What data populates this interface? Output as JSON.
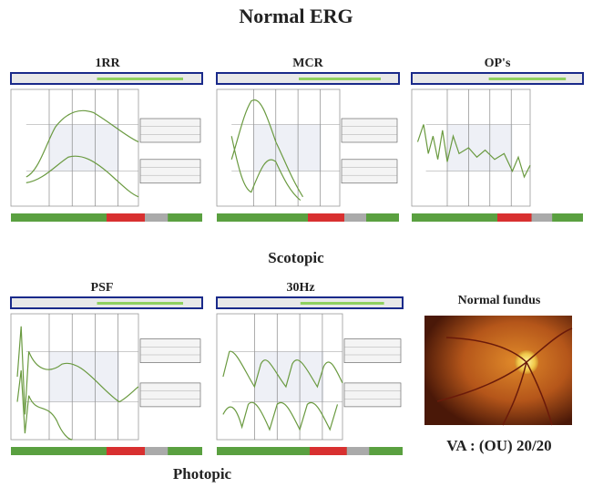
{
  "title": "Normal ERG",
  "scotopic": {
    "panels": [
      "1RR",
      "MCR",
      "OP's"
    ],
    "label": "Scotopic"
  },
  "photopic": {
    "panels": [
      "PSF",
      "30Hz"
    ],
    "label": "Photopic"
  },
  "fundus": {
    "title": "Normal fundus",
    "caption": "VA : (OU) 20/20"
  }
}
